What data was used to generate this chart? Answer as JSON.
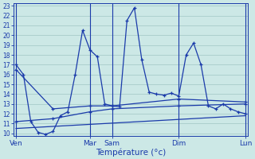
{
  "bg_color": "#cce8e6",
  "grid_color": "#a8ccca",
  "line_color": "#1a3aaa",
  "xlabel": "Température (°c)",
  "ylim": [
    9.7,
    23.3
  ],
  "yticks": [
    10,
    11,
    12,
    13,
    14,
    15,
    16,
    17,
    18,
    19,
    20,
    21,
    22,
    23
  ],
  "xlim": [
    -0.3,
    31.3
  ],
  "x_tick_positions": [
    0,
    10,
    13,
    22,
    31
  ],
  "x_tick_labels": [
    "Ven",
    "Mar",
    "Sam",
    "Dim",
    "Lun"
  ],
  "vline_positions": [
    0,
    10,
    13,
    22,
    31
  ],
  "line_main_x": [
    0,
    1,
    2,
    3,
    4,
    5,
    6,
    7,
    8,
    9,
    10,
    11,
    12,
    13,
    14,
    15,
    16,
    17,
    18,
    19,
    20,
    21,
    22,
    23,
    24,
    25,
    26,
    27,
    28,
    29,
    30,
    31
  ],
  "line_main_y": [
    17,
    16,
    11.2,
    10.1,
    9.9,
    10.2,
    11.8,
    12.2,
    16.0,
    20.5,
    18.5,
    17.8,
    13.0,
    12.8,
    12.7,
    21.5,
    22.8,
    17.5,
    14.2,
    14.0,
    13.9,
    14.1,
    13.8,
    18.0,
    19.2,
    17.0,
    12.8,
    12.5,
    13.0,
    12.5,
    12.2,
    12.0
  ],
  "line_upper_x": [
    0,
    5,
    10,
    13,
    22,
    31
  ],
  "line_upper_y": [
    16.5,
    12.5,
    12.8,
    12.8,
    13.5,
    13.2
  ],
  "line_lower_x": [
    0,
    5,
    10,
    13,
    22,
    31
  ],
  "line_lower_y": [
    11.2,
    11.5,
    12.2,
    12.5,
    12.8,
    13.0
  ],
  "line_trend_x": [
    0,
    31
  ],
  "line_trend_y": [
    10.5,
    11.8
  ],
  "figsize": [
    3.2,
    2.0
  ],
  "dpi": 100
}
